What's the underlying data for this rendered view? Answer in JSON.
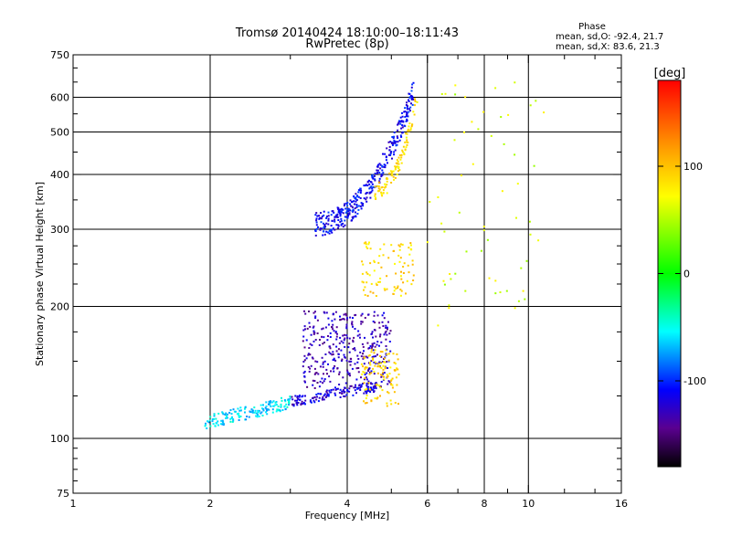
{
  "chart_data": {
    "type": "scatter",
    "title": "Tromsø 20140424 18:10:00–18:11:43",
    "subtitle": "RwPretec (8p)",
    "xlabel": "Frequency [MHz]",
    "ylabel": "Stationary phase Virtual Height [km]",
    "x_scale": "log",
    "y_scale": "log",
    "xlim": [
      1,
      16
    ],
    "ylim": [
      75,
      750
    ],
    "x_ticks": [
      1,
      2,
      4,
      6,
      8,
      10,
      16
    ],
    "x_tick_labels": [
      "1",
      "2",
      "4",
      "6",
      "8",
      "10",
      "16"
    ],
    "x_minor_ticks": [
      3,
      5,
      7,
      9,
      12,
      14
    ],
    "y_ticks": [
      75,
      100,
      200,
      300,
      400,
      500,
      600,
      750
    ],
    "y_tick_labels": [
      "75",
      "100",
      "200",
      "300",
      "400",
      "500",
      "600",
      "750"
    ],
    "y_grid": [
      100,
      200,
      300,
      400,
      500,
      600
    ],
    "x_grid": [
      2,
      4,
      6,
      8,
      10
    ],
    "grid": true,
    "stats": {
      "heading": "Phase",
      "line_o": "mean, sd,O: -92.4, 21.7",
      "line_x": "mean, sd,X:  83.6, 21.3"
    },
    "colorbar": {
      "label": "[deg]",
      "range": [
        -180,
        180
      ],
      "ticks": [
        100,
        0,
        -100
      ],
      "tick_labels": [
        "100",
        "0",
        "-100"
      ],
      "colors": [
        "#ff0000",
        "#ffff00",
        "#00ff00",
        "#00ffff",
        "#0000ff",
        "#000000"
      ]
    },
    "series": [
      {
        "name": "",
        "x_range": [
          1.95,
          3.0
        ],
        "y_range": [
          105,
          125
        ],
        "phase": -60,
        "count": 160,
        "curve": "E-trace low"
      },
      {
        "name": "",
        "x_range": [
          3.0,
          4.7
        ],
        "y_range": [
          118,
          135
        ],
        "phase": -120,
        "count": 140,
        "curve": "E-trace base"
      },
      {
        "name": "",
        "x_range": [
          3.2,
          5.0
        ],
        "y_range": [
          130,
          195
        ],
        "phase": -130,
        "count": 360,
        "curve": "E cloud"
      },
      {
        "name": "",
        "x_range": [
          4.3,
          5.2
        ],
        "y_range": [
          118,
          160
        ],
        "phase": 90,
        "count": 110,
        "curve": "X E cloud"
      },
      {
        "name": "",
        "x_range": [
          3.4,
          5.6
        ],
        "y_range": [
          290,
          660
        ],
        "phase": -110,
        "count": 360,
        "curve": "F trace"
      },
      {
        "name": "",
        "x_range": [
          4.6,
          5.7
        ],
        "y_range": [
          350,
          640
        ],
        "phase": 85,
        "count": 100,
        "curve": "X F trace"
      },
      {
        "name": "",
        "x_range": [
          4.3,
          5.6
        ],
        "y_range": [
          210,
          280
        ],
        "phase": 90,
        "count": 90,
        "curve": "X mid cloud"
      },
      {
        "name": "",
        "x_range": [
          6.0,
          11.0
        ],
        "y_range": [
          180,
          650
        ],
        "phase": 60,
        "count": 60,
        "curve": "sparse"
      }
    ]
  }
}
